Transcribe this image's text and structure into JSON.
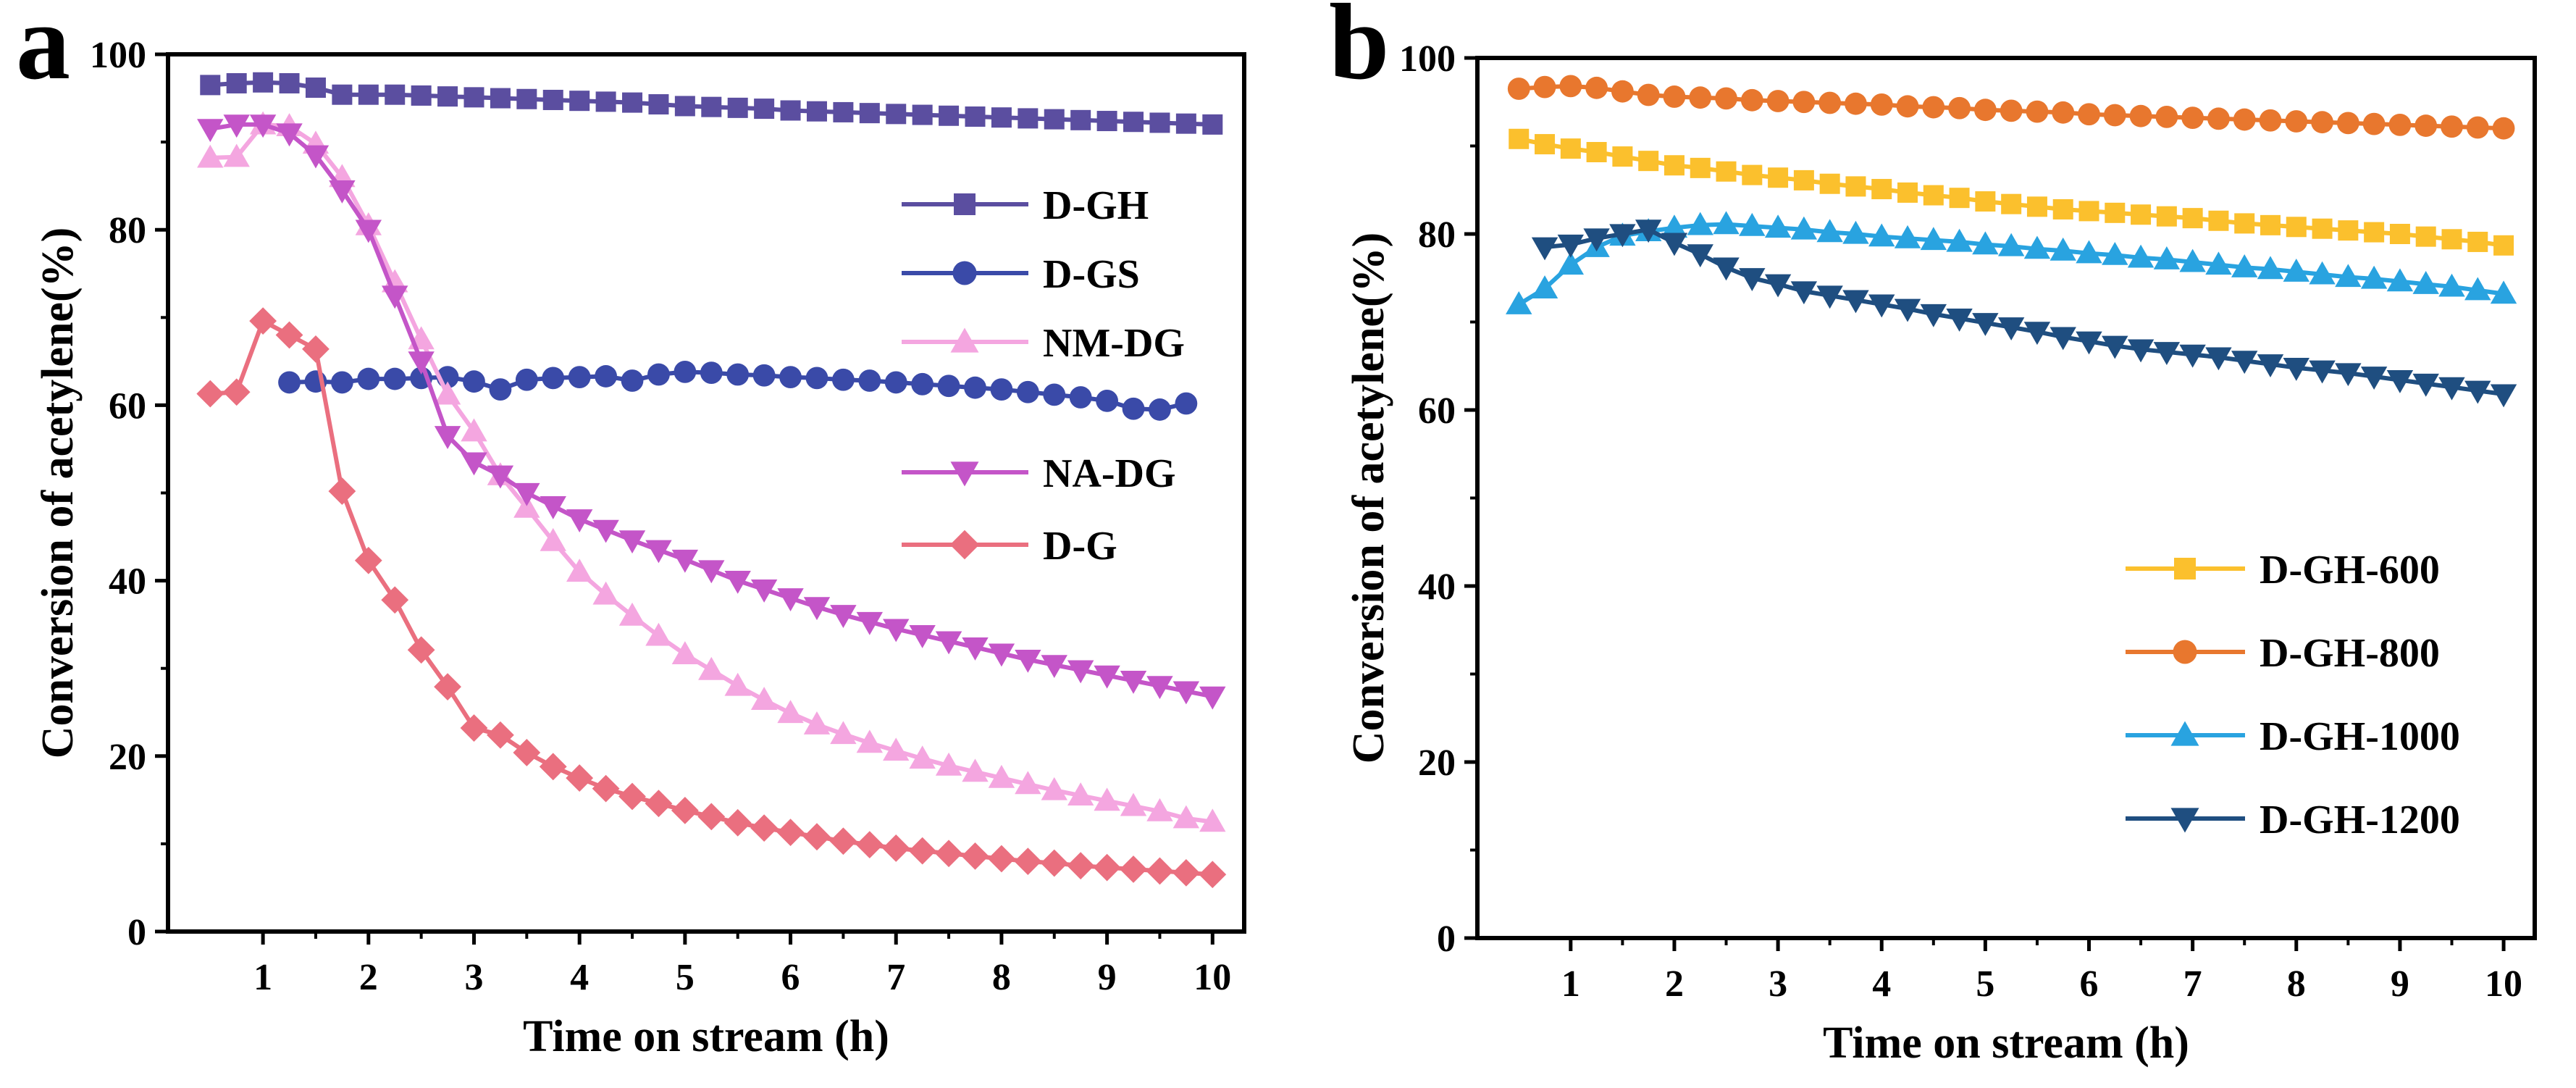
{
  "figure": {
    "panels": [
      "a",
      "b"
    ]
  },
  "chart_data": [
    {
      "panel": "a",
      "type": "line",
      "title": "",
      "xlabel": "Time on stream (h)",
      "ylabel": "Conversion of acetylene(%)",
      "xlim": [
        0.1,
        10.3
      ],
      "ylim": [
        0,
        100
      ],
      "xticks": [
        1,
        2,
        3,
        4,
        5,
        6,
        7,
        8,
        9,
        10
      ],
      "yticks": [
        0,
        20,
        40,
        60,
        80,
        100
      ],
      "legend_position": "right",
      "series": [
        {
          "name": "D-GH",
          "color": "#5b4ea0",
          "marker": "square",
          "x": [
            0.5,
            0.75,
            1.0,
            1.25,
            1.5,
            1.75,
            2.0,
            2.25,
            2.5,
            2.75,
            3.0,
            3.25,
            3.5,
            3.75,
            4.0,
            4.25,
            4.5,
            4.75,
            5.0,
            5.25,
            5.5,
            5.75,
            6.0,
            6.25,
            6.5,
            6.75,
            7.0,
            7.25,
            7.5,
            7.75,
            8.0,
            8.25,
            8.5,
            8.75,
            9.0,
            9.25,
            9.5,
            9.75,
            10.0
          ],
          "y": [
            96.5,
            96.7,
            96.8,
            96.7,
            96.2,
            95.4,
            95.4,
            95.4,
            95.3,
            95.2,
            95.1,
            95.0,
            94.9,
            94.8,
            94.7,
            94.6,
            94.5,
            94.3,
            94.1,
            94.0,
            93.9,
            93.8,
            93.6,
            93.5,
            93.4,
            93.3,
            93.2,
            93.1,
            93.0,
            92.9,
            92.8,
            92.7,
            92.6,
            92.5,
            92.4,
            92.3,
            92.2,
            92.1,
            92.0
          ]
        },
        {
          "name": "D-GS",
          "color": "#3a4aa8",
          "marker": "circle",
          "x": [
            1.25,
            1.5,
            1.75,
            2.0,
            2.25,
            2.5,
            2.75,
            3.0,
            3.25,
            3.5,
            3.75,
            4.0,
            4.25,
            4.5,
            4.75,
            5.0,
            5.25,
            5.5,
            5.75,
            6.0,
            6.25,
            6.5,
            6.75,
            7.0,
            7.25,
            7.5,
            7.75,
            8.0,
            8.25,
            8.5,
            8.75,
            9.0,
            9.25,
            9.5,
            9.75
          ],
          "y": [
            62.6,
            62.7,
            62.6,
            63.0,
            63.0,
            63.1,
            63.2,
            62.7,
            61.8,
            62.9,
            63.1,
            63.2,
            63.3,
            62.8,
            63.5,
            63.8,
            63.7,
            63.5,
            63.4,
            63.2,
            63.1,
            62.9,
            62.8,
            62.6,
            62.4,
            62.2,
            62.0,
            61.8,
            61.5,
            61.2,
            60.9,
            60.5,
            59.6,
            59.5,
            60.2
          ]
        },
        {
          "name": "NM-DG",
          "color": "#f4a6e0",
          "marker": "triangle-up",
          "x": [
            0.5,
            0.75,
            1.0,
            1.25,
            1.5,
            1.75,
            2.0,
            2.25,
            2.5,
            2.75,
            3.0,
            3.25,
            3.5,
            3.75,
            4.0,
            4.25,
            4.5,
            4.75,
            5.0,
            5.25,
            5.5,
            5.75,
            6.0,
            6.25,
            6.5,
            6.75,
            7.0,
            7.25,
            7.5,
            7.75,
            8.0,
            8.25,
            8.5,
            8.75,
            9.0,
            9.25,
            9.5,
            9.75,
            10.0
          ],
          "y": [
            88.2,
            88.3,
            92.0,
            91.8,
            89.8,
            86.0,
            80.5,
            74.0,
            67.5,
            61.2,
            57.0,
            52.0,
            48.3,
            44.5,
            41.0,
            38.4,
            36.0,
            33.7,
            31.6,
            29.8,
            28.0,
            26.4,
            24.9,
            23.6,
            22.5,
            21.5,
            20.6,
            19.7,
            18.9,
            18.2,
            17.5,
            16.8,
            16.1,
            15.5,
            14.9,
            14.3,
            13.7,
            12.9,
            12.5
          ]
        },
        {
          "name": "NA-DG",
          "color": "#c455c8",
          "marker": "triangle-down",
          "x": [
            0.5,
            0.75,
            1.0,
            1.25,
            1.5,
            1.75,
            2.0,
            2.25,
            2.5,
            2.75,
            3.0,
            3.25,
            3.5,
            3.75,
            4.0,
            4.25,
            4.5,
            4.75,
            5.0,
            5.25,
            5.5,
            5.75,
            6.0,
            6.25,
            6.5,
            6.75,
            7.0,
            7.25,
            7.5,
            7.75,
            8.0,
            8.25,
            8.5,
            8.75,
            9.0,
            9.25,
            9.5,
            9.75,
            10.0
          ],
          "y": [
            91.5,
            92.0,
            92.0,
            91.0,
            88.5,
            84.5,
            80.0,
            72.5,
            65.0,
            56.5,
            53.5,
            52.0,
            50.0,
            48.5,
            47.0,
            45.8,
            44.6,
            43.5,
            42.4,
            41.2,
            40.0,
            39.0,
            38.0,
            37.0,
            36.1,
            35.3,
            34.5,
            33.8,
            33.1,
            32.4,
            31.7,
            31.0,
            30.4,
            29.8,
            29.2,
            28.6,
            28.0,
            27.4,
            26.8
          ]
        },
        {
          "name": "D-G",
          "color": "#ea6f7f",
          "marker": "diamond",
          "x": [
            0.5,
            0.75,
            1.0,
            1.25,
            1.5,
            1.75,
            2.0,
            2.25,
            2.5,
            2.75,
            3.0,
            3.25,
            3.5,
            3.75,
            4.0,
            4.25,
            4.5,
            4.75,
            5.0,
            5.25,
            5.5,
            5.75,
            6.0,
            6.25,
            6.5,
            6.75,
            7.0,
            7.25,
            7.5,
            7.75,
            8.0,
            8.25,
            8.5,
            8.75,
            9.0,
            9.25,
            9.5,
            9.75,
            10.0
          ],
          "y": [
            61.3,
            61.5,
            69.6,
            68.0,
            66.4,
            50.2,
            42.3,
            37.8,
            32.1,
            27.9,
            23.2,
            22.4,
            20.4,
            18.8,
            17.5,
            16.3,
            15.4,
            14.6,
            13.8,
            13.1,
            12.4,
            11.8,
            11.3,
            10.8,
            10.3,
            9.9,
            9.5,
            9.2,
            8.9,
            8.6,
            8.3,
            8.0,
            7.8,
            7.5,
            7.3,
            7.1,
            6.9,
            6.7,
            6.5
          ]
        }
      ]
    },
    {
      "panel": "b",
      "type": "line",
      "title": "",
      "xlabel": "Time on stream (h)",
      "ylabel": "Conversion of acetylene(%)",
      "xlim": [
        0.1,
        10.3
      ],
      "ylim": [
        0,
        100
      ],
      "xticks": [
        1,
        2,
        3,
        4,
        5,
        6,
        7,
        8,
        9,
        10
      ],
      "yticks": [
        0,
        20,
        40,
        60,
        80,
        100
      ],
      "legend_position": "bottom-right",
      "series": [
        {
          "name": "D-GH-600",
          "color": "#fbc02d",
          "marker": "square",
          "x": [
            0.5,
            0.75,
            1.0,
            1.25,
            1.5,
            1.75,
            2.0,
            2.25,
            2.5,
            2.75,
            3.0,
            3.25,
            3.5,
            3.75,
            4.0,
            4.25,
            4.5,
            4.75,
            5.0,
            5.25,
            5.5,
            5.75,
            6.0,
            6.25,
            6.5,
            6.75,
            7.0,
            7.25,
            7.5,
            7.75,
            8.0,
            8.25,
            8.5,
            8.75,
            9.0,
            9.25,
            9.5,
            9.75,
            10.0
          ],
          "y": [
            90.8,
            90.2,
            89.7,
            89.3,
            88.8,
            88.3,
            87.8,
            87.5,
            87.1,
            86.7,
            86.4,
            86.1,
            85.7,
            85.4,
            85.1,
            84.7,
            84.4,
            84.1,
            83.7,
            83.4,
            83.1,
            82.8,
            82.6,
            82.4,
            82.2,
            82.0,
            81.8,
            81.5,
            81.2,
            81.0,
            80.8,
            80.6,
            80.4,
            80.2,
            80.0,
            79.7,
            79.4,
            79.1,
            78.7
          ]
        },
        {
          "name": "D-GH-800",
          "color": "#e8772e",
          "marker": "circle",
          "x": [
            0.5,
            0.75,
            1.0,
            1.25,
            1.5,
            1.75,
            2.0,
            2.25,
            2.5,
            2.75,
            3.0,
            3.25,
            3.5,
            3.75,
            4.0,
            4.25,
            4.5,
            4.75,
            5.0,
            5.25,
            5.5,
            5.75,
            6.0,
            6.25,
            6.5,
            6.75,
            7.0,
            7.25,
            7.5,
            7.75,
            8.0,
            8.25,
            8.5,
            8.75,
            9.0,
            9.25,
            9.5,
            9.75,
            10.0
          ],
          "y": [
            96.5,
            96.7,
            96.8,
            96.6,
            96.2,
            95.8,
            95.6,
            95.5,
            95.4,
            95.2,
            95.1,
            95.0,
            94.9,
            94.8,
            94.7,
            94.5,
            94.4,
            94.3,
            94.1,
            94.0,
            93.9,
            93.8,
            93.6,
            93.5,
            93.4,
            93.3,
            93.2,
            93.1,
            93.0,
            92.9,
            92.8,
            92.7,
            92.6,
            92.5,
            92.4,
            92.3,
            92.2,
            92.1,
            92.0
          ]
        },
        {
          "name": "D-GH-1000",
          "color": "#29a3e0",
          "marker": "triangle-up",
          "x": [
            0.5,
            0.75,
            1.0,
            1.25,
            1.5,
            1.75,
            2.0,
            2.25,
            2.5,
            2.75,
            3.0,
            3.25,
            3.5,
            3.75,
            4.0,
            4.25,
            4.5,
            4.75,
            5.0,
            5.25,
            5.5,
            5.75,
            6.0,
            6.25,
            6.5,
            6.75,
            7.0,
            7.25,
            7.5,
            7.75,
            8.0,
            8.25,
            8.5,
            8.75,
            9.0,
            9.25,
            9.5,
            9.75,
            10.0
          ],
          "y": [
            72.0,
            73.8,
            76.5,
            78.5,
            79.8,
            80.3,
            80.7,
            81.0,
            81.1,
            80.9,
            80.7,
            80.5,
            80.2,
            80.0,
            79.7,
            79.5,
            79.3,
            79.1,
            78.8,
            78.6,
            78.3,
            78.1,
            77.8,
            77.6,
            77.3,
            77.1,
            76.8,
            76.5,
            76.2,
            76.0,
            75.7,
            75.4,
            75.1,
            74.9,
            74.6,
            74.3,
            74.0,
            73.6,
            73.2
          ]
        },
        {
          "name": "D-GH-1200",
          "color": "#1f4e80",
          "marker": "triangle-down",
          "x": [
            0.75,
            1.0,
            1.25,
            1.5,
            1.75,
            2.0,
            2.25,
            2.5,
            2.75,
            3.0,
            3.25,
            3.5,
            3.75,
            4.0,
            4.25,
            4.5,
            4.75,
            5.0,
            5.25,
            5.5,
            5.75,
            6.0,
            6.25,
            6.5,
            6.75,
            7.0,
            7.25,
            7.5,
            7.75,
            8.0,
            8.25,
            8.5,
            8.75,
            9.0,
            9.25,
            9.5,
            9.75,
            10.0
          ],
          "y": [
            78.5,
            78.8,
            79.5,
            80.0,
            80.5,
            79.0,
            77.7,
            76.2,
            75.0,
            74.3,
            73.5,
            73.0,
            72.5,
            72.0,
            71.5,
            70.9,
            70.4,
            69.9,
            69.4,
            68.9,
            68.3,
            67.8,
            67.3,
            66.9,
            66.6,
            66.3,
            66.0,
            65.6,
            65.2,
            64.8,
            64.5,
            64.2,
            63.8,
            63.4,
            63.0,
            62.6,
            62.2,
            61.8
          ]
        }
      ]
    }
  ]
}
